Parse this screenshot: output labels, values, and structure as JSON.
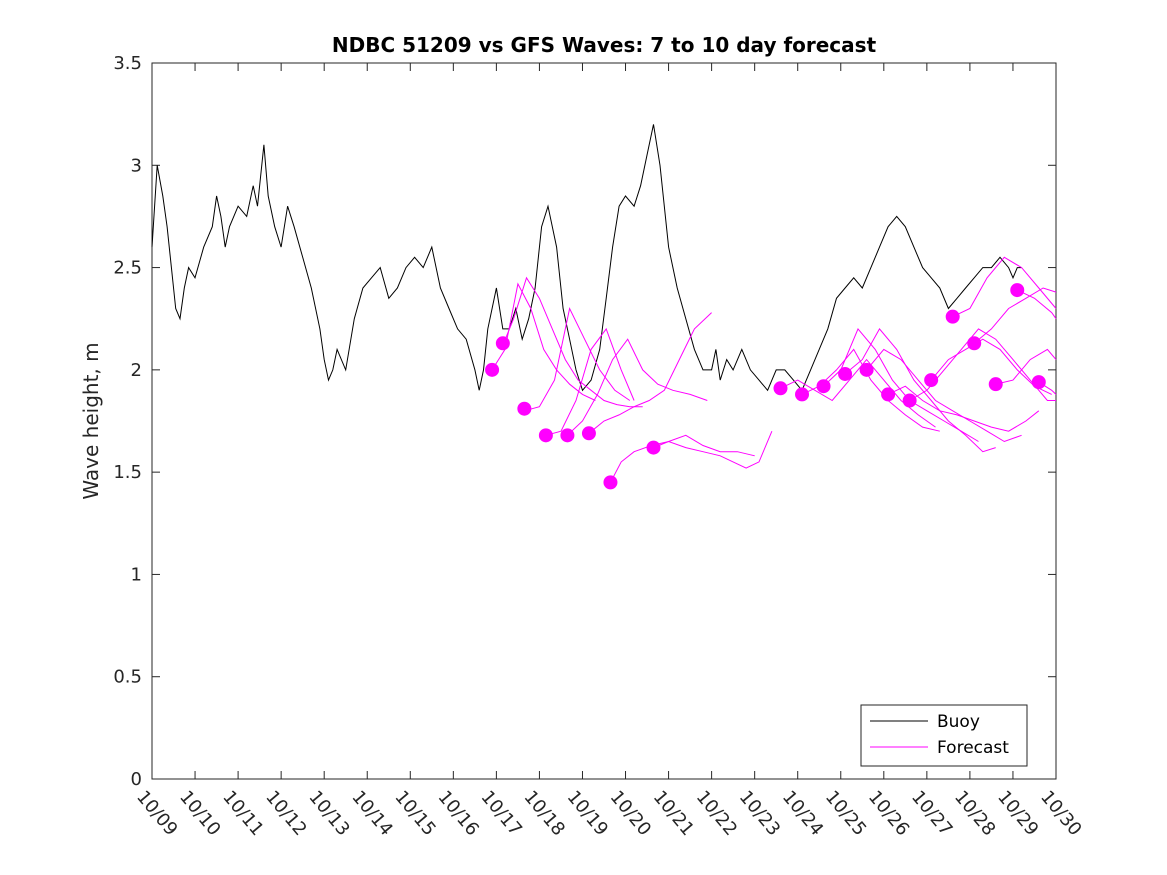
{
  "chart_data": {
    "type": "line",
    "title": "NDBC 51209 vs GFS Waves: 7 to 10 day forecast",
    "xlabel": "",
    "ylabel": "Wave height, m",
    "xlim": [
      0,
      21
    ],
    "ylim": [
      0,
      3.5
    ],
    "x_unit": "days since 10/09",
    "xticks": [
      0,
      1,
      2,
      3,
      4,
      5,
      6,
      7,
      8,
      9,
      10,
      11,
      12,
      13,
      14,
      15,
      16,
      17,
      18,
      19,
      20,
      21
    ],
    "xtick_labels": [
      "10/09",
      "10/10",
      "10/11",
      "10/12",
      "10/13",
      "10/14",
      "10/15",
      "10/16",
      "10/17",
      "10/18",
      "10/19",
      "10/20",
      "10/21",
      "10/22",
      "10/23",
      "10/24",
      "10/25",
      "10/26",
      "10/27",
      "10/28",
      "10/29",
      "10/30"
    ],
    "yticks": [
      0,
      0.5,
      1,
      1.5,
      2,
      2.5,
      3,
      3.5
    ],
    "ytick_labels": [
      "0",
      "0.5",
      "1",
      "1.5",
      "2",
      "2.5",
      "3",
      "3.5"
    ],
    "grid": false,
    "legend_position": "bottom-right",
    "legend": [
      {
        "name": "Buoy",
        "color": "#000000"
      },
      {
        "name": "Forecast",
        "color": "#ff00ff"
      }
    ],
    "series": [
      {
        "name": "Buoy",
        "color": "#000000",
        "x": [
          0,
          0.12,
          0.25,
          0.35,
          0.45,
          0.55,
          0.65,
          0.75,
          0.85,
          1.0,
          1.2,
          1.4,
          1.5,
          1.6,
          1.7,
          1.8,
          2.0,
          2.2,
          2.35,
          2.45,
          2.6,
          2.7,
          2.85,
          3.0,
          3.15,
          3.3,
          3.5,
          3.7,
          3.9,
          4.0,
          4.1,
          4.2,
          4.3,
          4.5,
          4.7,
          4.9,
          5.1,
          5.3,
          5.5,
          5.7,
          5.9,
          6.1,
          6.3,
          6.5,
          6.7,
          6.9,
          7.1,
          7.3,
          7.5,
          7.6,
          7.7,
          7.8,
          7.9,
          8.0,
          8.15,
          8.3,
          8.45,
          8.6,
          8.75,
          8.9,
          9.05,
          9.2,
          9.4,
          9.55,
          9.7,
          9.85,
          10.0,
          10.2,
          10.4,
          10.55,
          10.7,
          10.85,
          11.0,
          11.2,
          11.35,
          11.5,
          11.65,
          11.8,
          12.0,
          12.2,
          12.4,
          12.6,
          12.8,
          13.0,
          13.1,
          13.2,
          13.35,
          13.5,
          13.7,
          13.9,
          14.1,
          14.3,
          14.5,
          14.7,
          14.9,
          15.1,
          15.3,
          15.5,
          15.7,
          15.9,
          16.1,
          16.3,
          16.5,
          16.7,
          16.9,
          17.1,
          17.3,
          17.5,
          17.7,
          17.9,
          18.1,
          18.3,
          18.5,
          18.7,
          18.9,
          19.1,
          19.3,
          19.5,
          19.7,
          19.9,
          20.0,
          20.1,
          20.2
        ],
        "y": [
          2.6,
          3.0,
          2.85,
          2.7,
          2.5,
          2.3,
          2.25,
          2.4,
          2.5,
          2.45,
          2.6,
          2.7,
          2.85,
          2.75,
          2.6,
          2.7,
          2.8,
          2.75,
          2.9,
          2.8,
          3.1,
          2.85,
          2.7,
          2.6,
          2.8,
          2.7,
          2.55,
          2.4,
          2.2,
          2.05,
          1.95,
          2.0,
          2.1,
          2.0,
          2.25,
          2.4,
          2.45,
          2.5,
          2.35,
          2.4,
          2.5,
          2.55,
          2.5,
          2.6,
          2.4,
          2.3,
          2.2,
          2.15,
          2.0,
          1.9,
          2.0,
          2.2,
          2.3,
          2.4,
          2.2,
          2.2,
          2.3,
          2.15,
          2.25,
          2.4,
          2.7,
          2.8,
          2.6,
          2.3,
          2.15,
          2.0,
          1.9,
          1.95,
          2.1,
          2.35,
          2.6,
          2.8,
          2.85,
          2.8,
          2.9,
          3.05,
          3.2,
          3.0,
          2.6,
          2.4,
          2.25,
          2.1,
          2.0,
          2.0,
          2.1,
          1.95,
          2.05,
          2.0,
          2.1,
          2.0,
          1.95,
          1.9,
          2.0,
          2.0,
          1.95,
          1.9,
          2.0,
          2.1,
          2.2,
          2.35,
          2.4,
          2.45,
          2.4,
          2.5,
          2.6,
          2.7,
          2.75,
          2.7,
          2.6,
          2.5,
          2.45,
          2.4,
          2.3,
          2.35,
          2.4,
          2.45,
          2.5,
          2.5,
          2.55,
          2.5,
          2.45,
          2.5,
          2.5
        ]
      },
      {
        "name": "Forecast",
        "color": "#ff00ff",
        "runs": [
          {
            "x": [
              7.9,
              8.2,
              8.5,
              8.8,
              9.1,
              9.4,
              9.7,
              10.0,
              10.3
            ],
            "y": [
              2.0,
              2.1,
              2.42,
              2.3,
              2.1,
              2.0,
              1.93,
              1.88,
              1.85
            ]
          },
          {
            "x": [
              8.15,
              8.4,
              8.7,
              9.0,
              9.3,
              9.6,
              9.9,
              10.2,
              10.5,
              10.8,
              11.1,
              11.4
            ],
            "y": [
              2.12,
              2.25,
              2.45,
              2.35,
              2.2,
              2.05,
              1.95,
              1.9,
              1.85,
              1.83,
              1.82,
              1.82
            ]
          },
          {
            "x": [
              8.65,
              9.0,
              9.35,
              9.7,
              10.05,
              10.4,
              10.75,
              11.1
            ],
            "y": [
              1.8,
              1.82,
              1.95,
              2.3,
              2.15,
              2.0,
              1.9,
              1.85
            ]
          },
          {
            "x": [
              9.15,
              9.5,
              9.85,
              10.2,
              10.55,
              10.9,
              11.2
            ],
            "y": [
              1.68,
              1.7,
              1.85,
              2.1,
              2.2,
              2.0,
              1.85
            ]
          },
          {
            "x": [
              9.65,
              10.0,
              10.35,
              10.7,
              11.05,
              11.4,
              11.75,
              12.1,
              12.5,
              12.9
            ],
            "y": [
              1.68,
              1.75,
              1.88,
              2.05,
              2.15,
              2.0,
              1.93,
              1.9,
              1.88,
              1.85
            ]
          },
          {
            "x": [
              10.15,
              10.5,
              10.85,
              11.2,
              11.55,
              11.9,
              12.25,
              12.6,
              13.0
            ],
            "y": [
              1.69,
              1.75,
              1.78,
              1.82,
              1.85,
              1.9,
              2.05,
              2.2,
              2.28
            ]
          },
          {
            "x": [
              10.65,
              10.9,
              11.2,
              11.6,
              12.0,
              12.4,
              12.8,
              13.2,
              13.5,
              13.8,
              14.1,
              14.4
            ],
            "y": [
              1.45,
              1.55,
              1.6,
              1.63,
              1.65,
              1.62,
              1.6,
              1.58,
              1.55,
              1.52,
              1.55,
              1.7
            ]
          },
          {
            "x": [
              11.65,
              12.0,
              12.4,
              12.8,
              13.2,
              13.6,
              14.0
            ],
            "y": [
              1.62,
              1.65,
              1.68,
              1.63,
              1.6,
              1.6,
              1.58
            ]
          },
          {
            "x": [
              14.6,
              15.0,
              15.4,
              15.8,
              16.2,
              16.6,
              17.0,
              17.4,
              17.8,
              18.2
            ],
            "y": [
              1.91,
              1.95,
              1.9,
              1.85,
              1.95,
              2.05,
              1.95,
              1.85,
              1.78,
              1.72
            ]
          },
          {
            "x": [
              15.1,
              15.5,
              15.9,
              16.3,
              16.7,
              17.1,
              17.5,
              17.9,
              18.3
            ],
            "y": [
              1.88,
              1.92,
              2.0,
              2.1,
              1.95,
              1.85,
              1.78,
              1.72,
              1.7
            ]
          },
          {
            "x": [
              15.6,
              16.0,
              16.4,
              16.8,
              17.2,
              17.6,
              18.0,
              18.4,
              18.8,
              19.2
            ],
            "y": [
              1.92,
              2.0,
              2.2,
              2.1,
              1.95,
              1.85,
              1.8,
              1.75,
              1.7,
              1.65
            ]
          },
          {
            "x": [
              16.1,
              16.5,
              16.9,
              17.3,
              17.7,
              18.1,
              18.5,
              18.9,
              19.3,
              19.6
            ],
            "y": [
              1.98,
              2.05,
              2.2,
              2.1,
              1.95,
              1.85,
              1.75,
              1.68,
              1.6,
              1.62
            ]
          },
          {
            "x": [
              16.6,
              17.0,
              17.4,
              17.8,
              18.2,
              18.6,
              19.0,
              19.4,
              19.8,
              20.2
            ],
            "y": [
              2.0,
              2.1,
              2.05,
              1.95,
              1.85,
              1.8,
              1.75,
              1.7,
              1.65,
              1.68
            ]
          },
          {
            "x": [
              17.1,
              17.5,
              17.9,
              18.3,
              18.7,
              19.1,
              19.5,
              19.9,
              20.3,
              20.6
            ],
            "y": [
              1.88,
              1.92,
              1.85,
              1.8,
              1.78,
              1.75,
              1.72,
              1.7,
              1.75,
              1.8
            ]
          },
          {
            "x": [
              17.6,
              18.0,
              18.4,
              18.8,
              19.2,
              19.6,
              20.0,
              20.4,
              20.8,
              21.0
            ],
            "y": [
              1.85,
              1.9,
              2.0,
              2.1,
              2.2,
              2.15,
              2.05,
              1.95,
              1.85,
              1.85
            ]
          },
          {
            "x": [
              18.1,
              18.5,
              18.9,
              19.3,
              19.7,
              20.1,
              20.5,
              20.9
            ],
            "y": [
              1.95,
              2.05,
              2.1,
              2.15,
              2.1,
              2.0,
              1.92,
              1.88
            ]
          },
          {
            "x": [
              18.6,
              19.0,
              19.4,
              19.8,
              20.2,
              20.6,
              21.0
            ],
            "y": [
              2.26,
              2.3,
              2.45,
              2.55,
              2.5,
              2.4,
              2.3
            ]
          },
          {
            "x": [
              19.1,
              19.5,
              19.9,
              20.3,
              20.7,
              21.0
            ],
            "y": [
              2.13,
              2.2,
              2.3,
              2.35,
              2.4,
              2.38
            ]
          },
          {
            "x": [
              19.6,
              20.0,
              20.4,
              20.8,
              21.0
            ],
            "y": [
              1.93,
              1.95,
              2.05,
              2.1,
              2.05
            ]
          },
          {
            "x": [
              20.1,
              20.5,
              20.9,
              21.0
            ],
            "y": [
              2.39,
              2.35,
              2.28,
              2.25
            ]
          },
          {
            "x": [
              20.6,
              20.9,
              21.0
            ],
            "y": [
              1.94,
              1.9,
              1.88
            ]
          }
        ],
        "markers": {
          "x": [
            7.9,
            8.15,
            8.65,
            9.15,
            9.65,
            10.15,
            10.65,
            11.65,
            14.6,
            15.1,
            15.6,
            16.1,
            16.6,
            17.1,
            17.6,
            18.1,
            18.6,
            19.1,
            19.6,
            20.1,
            20.6
          ],
          "y": [
            2.0,
            2.13,
            1.81,
            1.68,
            1.68,
            1.69,
            1.45,
            1.62,
            1.91,
            1.88,
            1.92,
            1.98,
            2.0,
            1.88,
            1.85,
            1.95,
            2.26,
            2.13,
            1.93,
            2.39,
            1.94
          ]
        }
      }
    ]
  }
}
